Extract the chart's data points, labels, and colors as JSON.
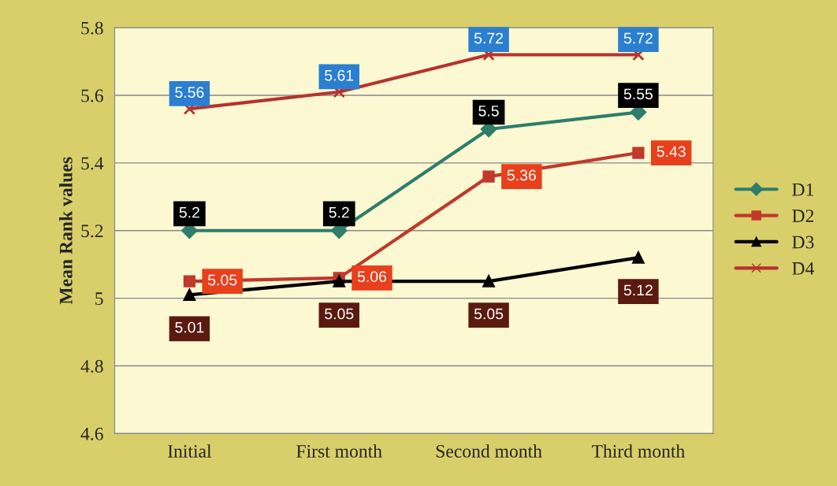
{
  "chart_data": {
    "type": "line",
    "ylabel": "Mean Rank values",
    "categories": [
      "Initial",
      "First month",
      "Second month",
      "Third month"
    ],
    "series": [
      {
        "name": "D1",
        "color": "#2e7d6b",
        "marker": "diamond",
        "values": [
          5.2,
          5.2,
          5.5,
          5.55
        ]
      },
      {
        "name": "D2",
        "color": "#c0392b",
        "marker": "square",
        "values": [
          5.05,
          5.06,
          5.36,
          5.43
        ]
      },
      {
        "name": "D3",
        "color": "#000000",
        "marker": "triangle",
        "values": [
          5.01,
          5.05,
          5.05,
          5.12
        ]
      },
      {
        "name": "D4",
        "color": "#b5332e",
        "marker": "cross",
        "values": [
          5.56,
          5.61,
          5.72,
          5.72
        ]
      }
    ],
    "ylim": [
      4.6,
      5.8
    ],
    "yticks": [
      4.6,
      4.8,
      5,
      5.2,
      5.4,
      5.6,
      5.8
    ],
    "grid": "y",
    "legend": "right",
    "data_labels": true
  }
}
